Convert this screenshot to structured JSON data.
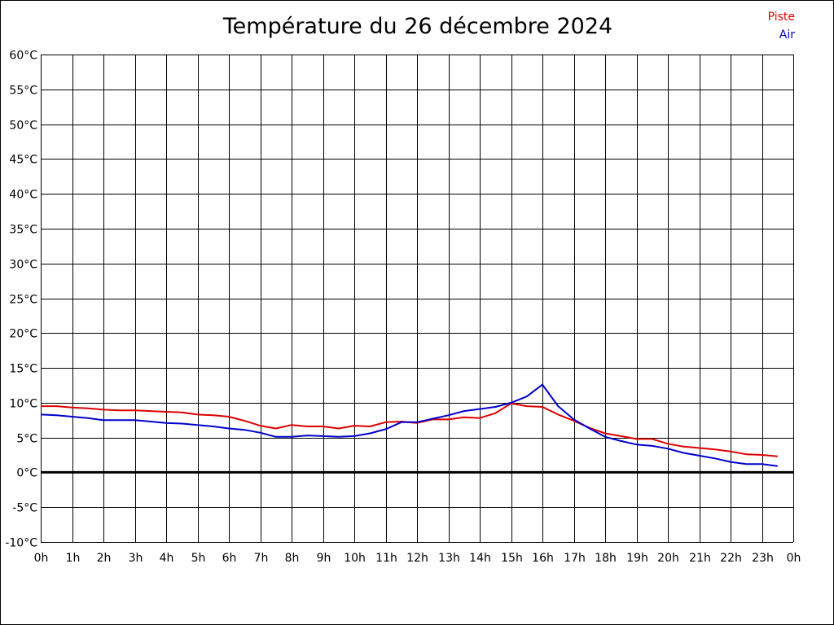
{
  "chart_data": {
    "type": "line",
    "title": "Température du 26 décembre 2024",
    "xlabel": "",
    "ylabel": "",
    "ylim": [
      -10,
      60
    ],
    "xlim": [
      0,
      24
    ],
    "grid": true,
    "legend_position": "top-right",
    "y_ticks": [
      60,
      55,
      50,
      45,
      40,
      35,
      30,
      25,
      20,
      15,
      10,
      5,
      0,
      -5,
      -10
    ],
    "y_tick_labels": [
      "60°C",
      "55°C",
      "50°C",
      "45°C",
      "40°C",
      "35°C",
      "30°C",
      "25°C",
      "20°C",
      "15°C",
      "10°C",
      "5°C",
      "0°C",
      "-5°C",
      "-10°C"
    ],
    "x_tick_labels": [
      "0h",
      "1h",
      "2h",
      "3h",
      "4h",
      "5h",
      "6h",
      "7h",
      "8h",
      "9h",
      "10h",
      "11h",
      "12h",
      "13h",
      "14h",
      "15h",
      "16h",
      "17h",
      "18h",
      "19h",
      "20h",
      "21h",
      "22h",
      "23h",
      "0h"
    ],
    "x": [
      0,
      0.5,
      1,
      1.5,
      2,
      2.5,
      3,
      3.5,
      4,
      4.5,
      5,
      5.5,
      6,
      6.5,
      7,
      7.5,
      8,
      8.5,
      9,
      9.5,
      10,
      10.5,
      11,
      11.5,
      12,
      12.5,
      13,
      13.5,
      14,
      14.5,
      15,
      15.5,
      16,
      16.5,
      17,
      17.5,
      18,
      18.5,
      19,
      19.5,
      20,
      20.5,
      21,
      21.5,
      22,
      22.5,
      23,
      23.5
    ],
    "series": [
      {
        "name": "Piste",
        "color": "#dd0000",
        "values": [
          9.5,
          9.5,
          9.3,
          9.2,
          9.0,
          8.9,
          8.9,
          8.8,
          8.7,
          8.6,
          8.3,
          8.2,
          8.0,
          7.4,
          6.7,
          6.3,
          6.8,
          6.6,
          6.6,
          6.3,
          6.7,
          6.6,
          7.2,
          7.3,
          7.1,
          7.6,
          7.6,
          7.9,
          7.8,
          8.5,
          9.9,
          9.5,
          9.4,
          8.3,
          7.4,
          6.4,
          5.6,
          5.2,
          4.8,
          4.8,
          4.1,
          3.7,
          3.5,
          3.3,
          3.0,
          2.6,
          2.5,
          2.3
        ]
      },
      {
        "name": "Air",
        "color": "#0000cc",
        "values": [
          8.3,
          8.2,
          8.0,
          7.8,
          7.5,
          7.5,
          7.5,
          7.3,
          7.1,
          7.0,
          6.8,
          6.6,
          6.3,
          6.1,
          5.7,
          5.1,
          5.1,
          5.3,
          5.2,
          5.1,
          5.2,
          5.6,
          6.2,
          7.2,
          7.2,
          7.7,
          8.2,
          8.8,
          9.1,
          9.4,
          10.0,
          10.9,
          12.6,
          9.5,
          7.6,
          6.3,
          5.1,
          4.5,
          4.0,
          3.8,
          3.4,
          2.8,
          2.4,
          2.0,
          1.5,
          1.2,
          1.2,
          0.9
        ]
      }
    ],
    "axis_color": "#000000",
    "grid_color": "#000000"
  }
}
